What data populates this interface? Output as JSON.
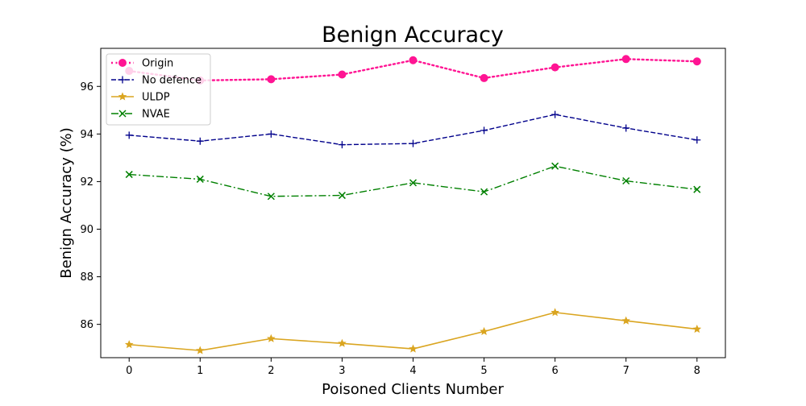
{
  "chart_data": {
    "type": "line",
    "title": "Benign Accuracy",
    "xlabel": "Poisoned Clients Number",
    "ylabel": "Benign Accuracy (%)",
    "x": [
      0,
      1,
      2,
      3,
      4,
      5,
      6,
      7,
      8
    ],
    "xticks": [
      "0",
      "1",
      "2",
      "3",
      "4",
      "5",
      "6",
      "7",
      "8"
    ],
    "yticks": [
      86,
      88,
      90,
      92,
      94,
      96
    ],
    "xlim": [
      -0.4,
      8.4
    ],
    "ylim": [
      84.6,
      97.6
    ],
    "grid": false,
    "legend_position": "top-left",
    "series": [
      {
        "name": "Origin",
        "values": [
          96.65,
          96.25,
          96.3,
          96.5,
          97.1,
          96.35,
          96.8,
          97.15,
          97.05
        ],
        "color": "#ff1493",
        "dash": "dotted",
        "marker": "circle"
      },
      {
        "name": "No defence",
        "values": [
          93.95,
          93.7,
          94.0,
          93.55,
          93.6,
          94.15,
          94.82,
          94.25,
          93.75
        ],
        "color": "#00008b",
        "dash": "dashed",
        "marker": "plus"
      },
      {
        "name": "ULDP",
        "values": [
          85.15,
          84.9,
          85.4,
          85.2,
          84.97,
          85.7,
          86.5,
          86.15,
          85.8
        ],
        "color": "#daa520",
        "dash": "solid",
        "marker": "star"
      },
      {
        "name": "NVAE",
        "values": [
          92.3,
          92.1,
          91.38,
          91.42,
          91.95,
          91.57,
          92.65,
          92.03,
          91.67
        ],
        "color": "#008000",
        "dash": "dashdot",
        "marker": "x"
      }
    ]
  }
}
